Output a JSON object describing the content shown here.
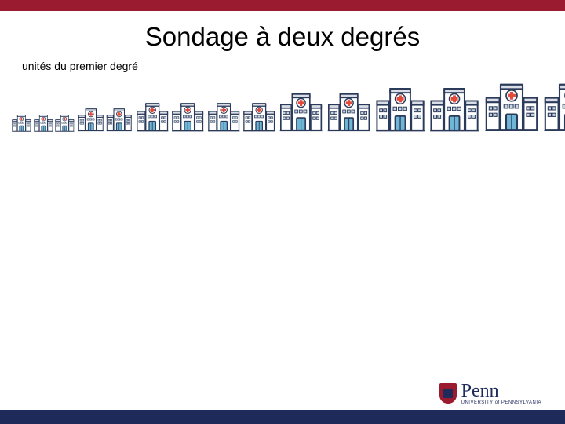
{
  "colors": {
    "topbar": "#9a1b2f",
    "footer": "#1e2a5a",
    "hospital_outline": "#2b3a5a",
    "hospital_wall": "#ffffff",
    "hospital_roof": "#d9dde5",
    "hospital_cross": "#e24b3b",
    "hospital_door": "#6fb6d6",
    "hospital_window": "#c8d4e0",
    "logo_shield": "#9a1b2f",
    "logo_text": "#1e2a5a"
  },
  "title": "Sondage à deux degrés",
  "subtitle": "unités du premier degré",
  "hospitals": {
    "type": "infographic-row",
    "align": "bottom",
    "sizes": [
      {
        "count": 3,
        "scale": 0.36
      },
      {
        "count": 2,
        "scale": 0.48
      },
      {
        "count": 4,
        "scale": 0.6
      },
      {
        "count": 2,
        "scale": 0.8
      },
      {
        "count": 2,
        "scale": 0.92
      },
      {
        "count": 2,
        "scale": 1.0
      }
    ],
    "base_width": 74,
    "base_height": 70
  },
  "logo": {
    "name": "Penn",
    "subtitle": "UNIVERSITY of PENNSYLVANIA"
  }
}
